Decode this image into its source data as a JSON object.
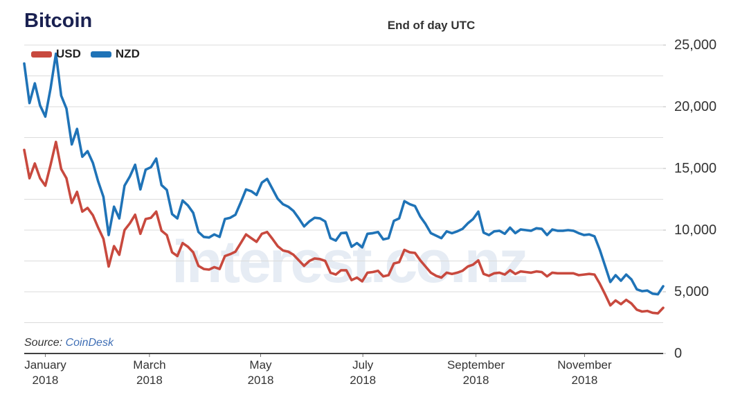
{
  "header": {
    "title": "Bitcoin",
    "subtitle": "End of day UTC"
  },
  "legend": [
    {
      "label": "USD",
      "color": "#c8493e"
    },
    {
      "label": "NZD",
      "color": "#1f73b7"
    }
  ],
  "watermark": {
    "text": "interest.co.nz",
    "color": "#e6ecf4"
  },
  "source": {
    "prefix": "Source: ",
    "link": "CoinDesk"
  },
  "colors": {
    "title": "#1a2151",
    "text": "#333333",
    "gridline": "#dbdbdb",
    "axis_line": "#404040",
    "usd_line": "#c8493e",
    "nzd_line": "#1f73b7",
    "link": "#3f6fb5"
  },
  "chart_data": {
    "type": "line",
    "title": "Bitcoin",
    "subtitle": "End of day UTC",
    "xlabel": "",
    "ylabel": "",
    "ylim": [
      0,
      25000
    ],
    "y_major_step": 5000,
    "y_minor_step": 2500,
    "grid": true,
    "legend_position": "top-left",
    "y_tick_labels": [
      "0",
      "5,000",
      "10,000",
      "15,000",
      "20,000",
      "25,000"
    ],
    "x_ticks": [
      {
        "label": "January\n2018",
        "pos": 0.033
      },
      {
        "label": "March 2018",
        "pos": 0.196
      },
      {
        "label": "May 2018",
        "pos": 0.37
      },
      {
        "label": "July 2018",
        "pos": 0.53
      },
      {
        "label": "September 2018",
        "pos": 0.707
      },
      {
        "label": "November 2018",
        "pos": 0.877
      }
    ],
    "x_coverage": "late December 2017 through mid December 2018, sampled about every 3 days",
    "series": [
      {
        "name": "USD",
        "color": "#c8493e",
        "values": [
          16500,
          14200,
          15400,
          14200,
          13600,
          15300,
          17150,
          14950,
          14200,
          12200,
          13100,
          11500,
          11800,
          11200,
          10200,
          9300,
          7050,
          8700,
          8000,
          10000,
          10550,
          11250,
          9700,
          10900,
          11000,
          11500,
          9950,
          9600,
          8200,
          7900,
          8950,
          8650,
          8200,
          7100,
          6850,
          6800,
          7000,
          6850,
          7900,
          8050,
          8250,
          8950,
          9650,
          9350,
          9050,
          9700,
          9850,
          9300,
          8700,
          8350,
          8250,
          8000,
          7550,
          7100,
          7500,
          7700,
          7650,
          7500,
          6550,
          6400,
          6750,
          6750,
          5950,
          6150,
          5850,
          6550,
          6600,
          6700,
          6250,
          6350,
          7300,
          7400,
          8400,
          8200,
          8150,
          7550,
          7050,
          6550,
          6300,
          6150,
          6550,
          6450,
          6550,
          6700,
          7050,
          7200,
          7550,
          6450,
          6300,
          6500,
          6550,
          6400,
          6750,
          6450,
          6650,
          6600,
          6550,
          6650,
          6600,
          6250,
          6550,
          6500,
          6500,
          6500,
          6500,
          6350,
          6400,
          6450,
          6400,
          5650,
          4800,
          3900,
          4300,
          4000,
          4350,
          4050,
          3550,
          3400,
          3450,
          3300,
          3250,
          3700
        ]
      },
      {
        "name": "NZD",
        "color": "#1f73b7",
        "values": [
          23500,
          20300,
          21900,
          20100,
          19200,
          21500,
          24300,
          20900,
          19850,
          16950,
          18200,
          15950,
          16400,
          15450,
          13950,
          12700,
          9600,
          11900,
          10950,
          13600,
          14350,
          15300,
          13300,
          14900,
          15100,
          15800,
          13650,
          13250,
          11300,
          10950,
          12400,
          12000,
          11400,
          9850,
          9450,
          9400,
          9650,
          9450,
          10900,
          11000,
          11250,
          12250,
          13300,
          13150,
          12850,
          13850,
          14150,
          13350,
          12550,
          12100,
          11900,
          11550,
          10950,
          10300,
          10700,
          11000,
          10950,
          10700,
          9350,
          9150,
          9750,
          9800,
          8650,
          8950,
          8600,
          9700,
          9750,
          9850,
          9250,
          9350,
          10750,
          10950,
          12350,
          12100,
          11950,
          11100,
          10500,
          9750,
          9550,
          9350,
          9900,
          9750,
          9900,
          10100,
          10550,
          10900,
          11500,
          9800,
          9600,
          9900,
          9950,
          9700,
          10200,
          9750,
          10050,
          10000,
          9950,
          10150,
          10100,
          9600,
          10050,
          9950,
          9950,
          10000,
          9950,
          9750,
          9600,
          9650,
          9500,
          8400,
          7100,
          5800,
          6350,
          5900,
          6400,
          6000,
          5200,
          5050,
          5100,
          4850,
          4800,
          5450
        ]
      }
    ]
  }
}
